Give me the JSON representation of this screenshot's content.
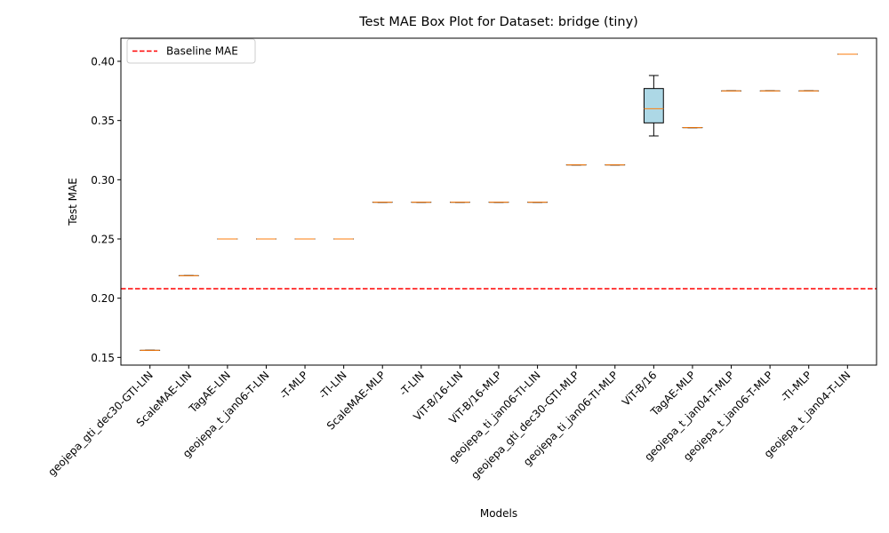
{
  "chart_data": {
    "type": "box",
    "title": "Test MAE Box Plot for Dataset: bridge (tiny)",
    "xlabel": "Models",
    "ylabel": "Test MAE",
    "ylim": [
      0.1435,
      0.4195
    ],
    "yticks": [
      0.15,
      0.2,
      0.25,
      0.3,
      0.35,
      0.4
    ],
    "ytick_labels": [
      "0.15",
      "0.20",
      "0.25",
      "0.30",
      "0.35",
      "0.40"
    ],
    "baseline": {
      "label": "Baseline MAE",
      "value": 0.208,
      "color": "#ff0000"
    },
    "legend_position": "top-left",
    "box_color": "#add8e6",
    "median_color": "#ff7f0e",
    "categories": [
      "geojepa_gti_dec30-GTI-LIN",
      "ScaleMAE-LIN",
      "TagAE-LIN",
      "geojepa_t_jan06-T-LIN",
      "-T-MLP",
      "-TI-LIN",
      "ScaleMAE-MLP",
      "-T-LIN",
      "ViT-B/16-LIN",
      "ViT-B/16-MLP",
      "geojepa_ti_jan06-TI-LIN",
      "geojepa_gti_dec30-GTI-MLP",
      "geojepa_ti_jan06-TI-MLP",
      "ViT-B/16",
      "TagAE-MLP",
      "geojepa_t_jan04-T-MLP",
      "geojepa_t_jan06-T-MLP",
      "-TI-MLP",
      "geojepa_t_jan04-T-LIN"
    ],
    "boxes": [
      {
        "whislo": 0.156,
        "q1": 0.156,
        "med": 0.156,
        "q3": 0.156,
        "whishi": 0.156
      },
      {
        "whislo": 0.219,
        "q1": 0.219,
        "med": 0.219,
        "q3": 0.219,
        "whishi": 0.219
      },
      {
        "whislo": 0.25,
        "q1": 0.25,
        "med": 0.25,
        "q3": 0.25,
        "whishi": 0.25
      },
      {
        "whislo": 0.25,
        "q1": 0.25,
        "med": 0.25,
        "q3": 0.25,
        "whishi": 0.25
      },
      {
        "whislo": 0.25,
        "q1": 0.25,
        "med": 0.25,
        "q3": 0.25,
        "whishi": 0.25
      },
      {
        "whislo": 0.25,
        "q1": 0.25,
        "med": 0.25,
        "q3": 0.25,
        "whishi": 0.25
      },
      {
        "whislo": 0.281,
        "q1": 0.281,
        "med": 0.281,
        "q3": 0.281,
        "whishi": 0.281
      },
      {
        "whislo": 0.281,
        "q1": 0.281,
        "med": 0.281,
        "q3": 0.281,
        "whishi": 0.281
      },
      {
        "whislo": 0.281,
        "q1": 0.281,
        "med": 0.281,
        "q3": 0.281,
        "whishi": 0.281
      },
      {
        "whislo": 0.281,
        "q1": 0.281,
        "med": 0.281,
        "q3": 0.281,
        "whishi": 0.281
      },
      {
        "whislo": 0.281,
        "q1": 0.281,
        "med": 0.281,
        "q3": 0.281,
        "whishi": 0.281
      },
      {
        "whislo": 0.3125,
        "q1": 0.3125,
        "med": 0.3125,
        "q3": 0.3125,
        "whishi": 0.3125
      },
      {
        "whislo": 0.3125,
        "q1": 0.3125,
        "med": 0.3125,
        "q3": 0.3125,
        "whishi": 0.3125
      },
      {
        "whislo": 0.337,
        "q1": 0.348,
        "med": 0.36,
        "q3": 0.377,
        "whishi": 0.388
      },
      {
        "whislo": 0.344,
        "q1": 0.344,
        "med": 0.344,
        "q3": 0.344,
        "whishi": 0.344
      },
      {
        "whislo": 0.375,
        "q1": 0.375,
        "med": 0.375,
        "q3": 0.375,
        "whishi": 0.375
      },
      {
        "whislo": 0.375,
        "q1": 0.375,
        "med": 0.375,
        "q3": 0.375,
        "whishi": 0.375
      },
      {
        "whislo": 0.375,
        "q1": 0.375,
        "med": 0.375,
        "q3": 0.375,
        "whishi": 0.375
      },
      {
        "whislo": 0.406,
        "q1": 0.406,
        "med": 0.406,
        "q3": 0.406,
        "whishi": 0.406
      }
    ]
  }
}
